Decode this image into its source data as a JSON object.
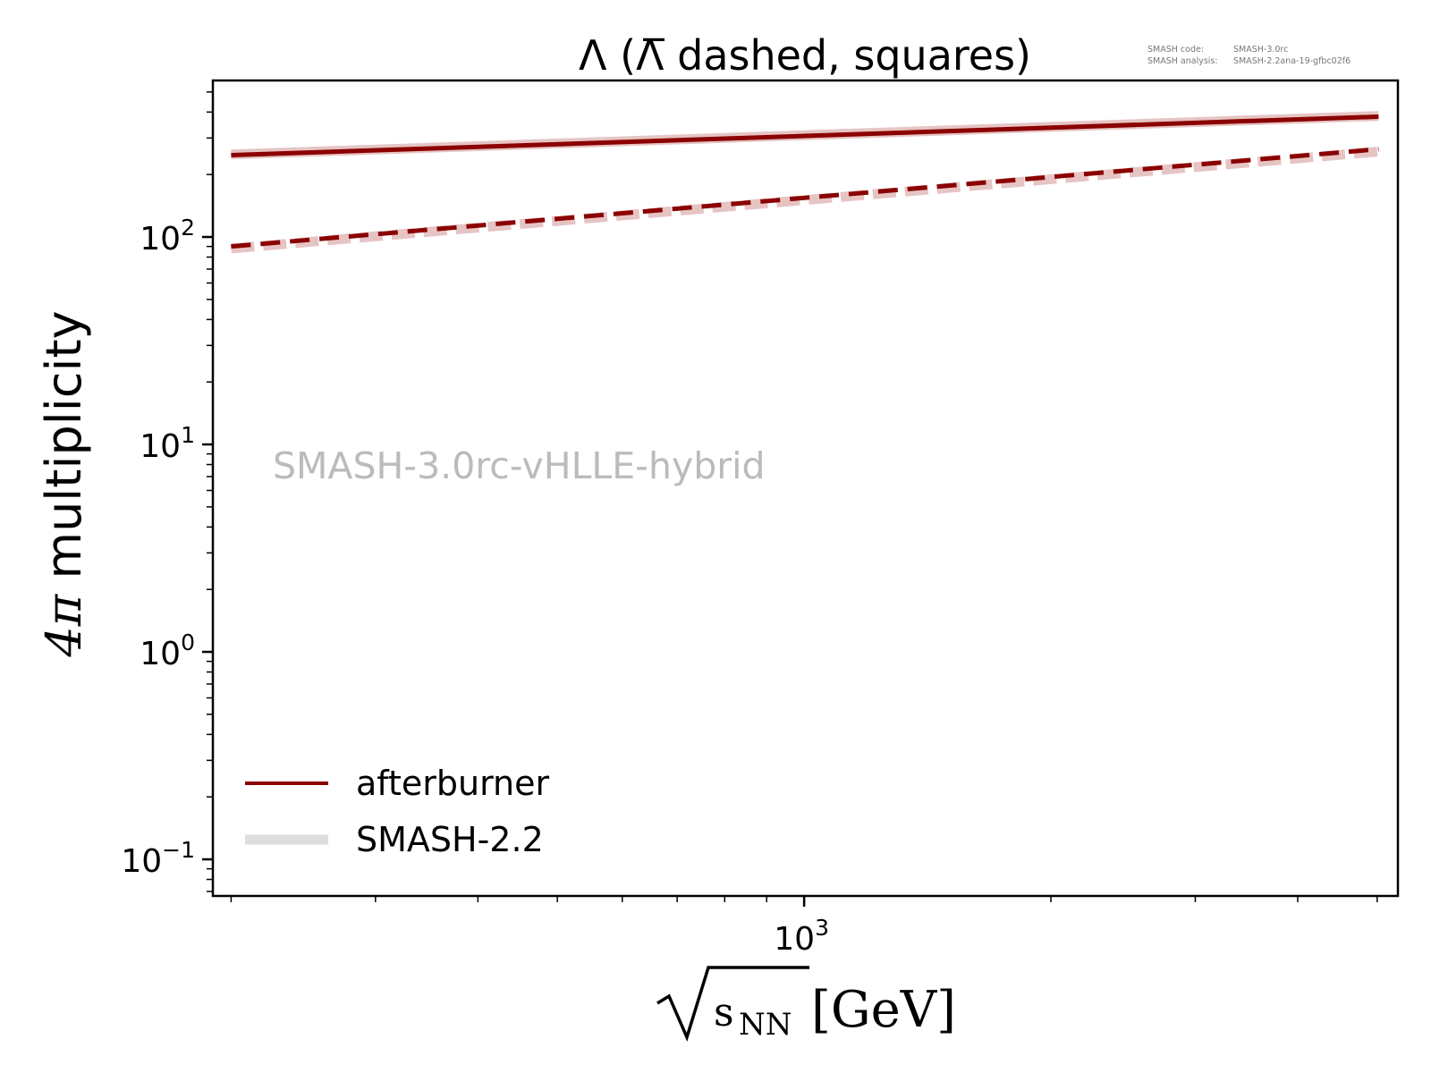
{
  "chart_data": {
    "type": "line",
    "title": "Λ (Λ̅ dashed, squares)",
    "xlabel": {
      "radicand": "s",
      "subscript": "NN",
      "unit": "[GeV]"
    },
    "ylabel": {
      "prefix": "4π",
      "text": " multiplicity"
    },
    "xscale": "log",
    "yscale": "log",
    "xlim": [
      190,
      5300
    ],
    "ylim": [
      0.0666,
      568
    ],
    "x_major_ticks": [
      {
        "value": 1000,
        "base": "10",
        "exp": "3"
      }
    ],
    "y_major_ticks": [
      {
        "value": 100,
        "base": "10",
        "exp": "2"
      },
      {
        "value": 10,
        "base": "10",
        "exp": "1"
      },
      {
        "value": 1,
        "base": "10",
        "exp": "0"
      },
      {
        "value": 0.1,
        "base": "10",
        "exp": "−1"
      }
    ],
    "x": [
      200,
      5020
    ],
    "series": [
      {
        "name": "SMASH-2.2",
        "particle": "Lambda",
        "style": "solid",
        "color": "#e6c4c4",
        "values": [
          250,
          383
        ]
      },
      {
        "name": "SMASH-2.2",
        "particle": "anti-Lambda",
        "style": "dashed",
        "color": "#e6c4c4",
        "values": [
          88,
          258
        ]
      },
      {
        "name": "afterburner",
        "particle": "Lambda",
        "style": "solid",
        "color": "#8b0000",
        "values": [
          248,
          380
        ]
      },
      {
        "name": "afterburner",
        "particle": "anti-Lambda",
        "style": "dashed",
        "color": "#8b0000",
        "values": [
          90,
          265
        ]
      }
    ],
    "legend": {
      "placement": "lower-left",
      "entries": [
        {
          "label": "afterburner",
          "color": "#8b0000"
        },
        {
          "label": "SMASH-2.2",
          "color": "#dddddd"
        }
      ]
    },
    "watermark": "SMASH-3.0rc-vHLLE-hybrid",
    "annotation": {
      "code_label": "SMASH code:",
      "code_value": "SMASH-3.0rc",
      "analysis_label": "SMASH analysis:",
      "analysis_value": "SMASH-2.2ana-19-gfbc02f6"
    },
    "grid": false
  }
}
